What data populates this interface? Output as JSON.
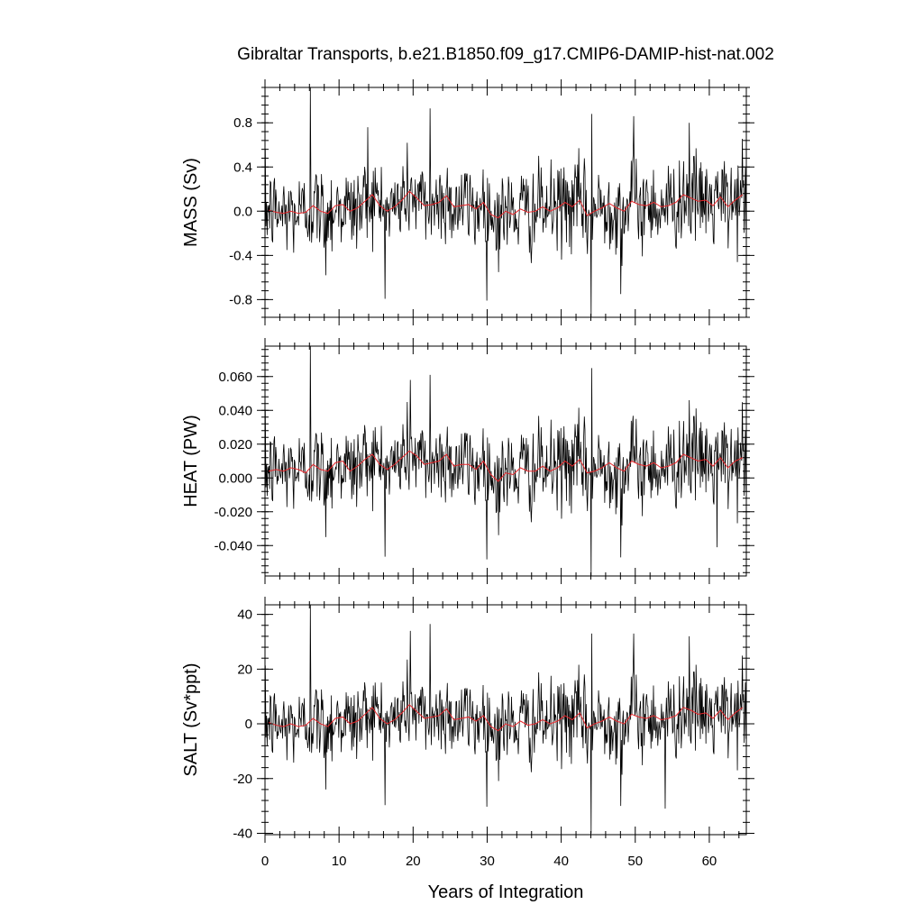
{
  "figure": {
    "title": "Gibraltar Transports, b.e21.B1850.f09_g17.CMIP6-DAMIP-hist-nat.002",
    "xlabel": "Years of Integration",
    "x_ticks": [
      "0",
      "10",
      "20",
      "30",
      "40",
      "50",
      "60"
    ]
  },
  "chart_data": [
    {
      "type": "line",
      "panel": "mass",
      "title": "Gibraltar Transports, b.e21.B1850.f09_g17.CMIP6-DAMIP-hist-nat.002",
      "xlabel": "",
      "ylabel": "MASS (Sv)",
      "xlim": [
        0,
        65
      ],
      "ylim": [
        -0.96,
        1.12
      ],
      "y_ticks": [
        "0.8",
        "0.4",
        "0.0",
        "-0.4",
        "-0.8"
      ],
      "y_tick_values": [
        0.8,
        0.4,
        0.0,
        -0.4,
        -0.8
      ],
      "series": [
        {
          "color": "#000000",
          "style": "monthly",
          "amplitude": 0.2,
          "peaks": [
            [
              6.1,
              1.12
            ],
            [
              22.3,
              0.93
            ],
            [
              44.1,
              0.88
            ],
            [
              13.9,
              0.76
            ],
            [
              57.3,
              0.8
            ],
            [
              49.8,
              0.86
            ],
            [
              44.0,
              -0.96
            ],
            [
              8.2,
              -0.58
            ],
            [
              48.0,
              -0.75
            ]
          ]
        },
        {
          "color": "#e8252a",
          "style": "annual",
          "x": [
            0.5,
            1.5,
            2.5,
            3.5,
            4.5,
            5.5,
            6.5,
            7.5,
            8.5,
            9.5,
            10.5,
            11.5,
            12.5,
            13.5,
            14.5,
            15.5,
            16.5,
            17.5,
            18.5,
            19.5,
            20.5,
            21.5,
            22.5,
            23.5,
            24.5,
            25.5,
            26.5,
            27.5,
            28.5,
            29.5,
            30.5,
            31.5,
            32.5,
            33.5,
            34.5,
            35.5,
            36.5,
            37.5,
            38.5,
            39.5,
            40.5,
            41.5,
            42.5,
            43.5,
            44.5,
            45.5,
            46.5,
            47.5,
            48.5,
            49.5,
            50.5,
            51.5,
            52.5,
            53.5,
            54.5,
            55.5,
            56.5,
            57.5,
            58.5,
            59.5,
            60.5,
            61.5,
            62.5,
            63.5,
            64.5
          ],
          "y": [
            0.01,
            -0.01,
            -0.02,
            0.0,
            -0.02,
            -0.01,
            0.05,
            0.0,
            -0.02,
            0.05,
            0.06,
            0.0,
            0.03,
            0.09,
            0.15,
            0.05,
            0.0,
            0.04,
            0.1,
            0.18,
            0.12,
            0.05,
            0.06,
            0.08,
            0.14,
            0.04,
            0.05,
            0.06,
            0.02,
            0.08,
            -0.03,
            -0.06,
            0.0,
            -0.03,
            0.02,
            -0.01,
            0.0,
            0.04,
            0.0,
            0.03,
            0.08,
            0.04,
            0.1,
            -0.04,
            0.0,
            0.03,
            0.07,
            0.03,
            0.0,
            0.09,
            0.06,
            0.05,
            0.08,
            0.04,
            0.05,
            0.08,
            0.15,
            0.12,
            0.09,
            0.1,
            0.05,
            0.13,
            0.04,
            0.1,
            0.15
          ]
        }
      ]
    },
    {
      "type": "line",
      "panel": "heat",
      "title": "",
      "xlabel": "",
      "ylabel": "HEAT (PW)",
      "xlim": [
        0,
        65
      ],
      "ylim": [
        -0.058,
        0.078
      ],
      "y_ticks": [
        "0.060",
        "0.040",
        "0.020",
        "0.000",
        "-0.020",
        "-0.040"
      ],
      "y_tick_values": [
        0.06,
        0.04,
        0.02,
        0.0,
        -0.02,
        -0.04
      ],
      "series": [
        {
          "color": "#000000",
          "style": "monthly",
          "amplitude": 0.013,
          "peaks": [
            [
              6.1,
              0.078
            ],
            [
              22.3,
              0.061
            ],
            [
              44.1,
              0.065
            ],
            [
              19.6,
              0.058
            ],
            [
              57.3,
              0.046
            ],
            [
              44.0,
              -0.058
            ],
            [
              48.0,
              -0.047
            ],
            [
              8.2,
              -0.035
            ],
            [
              61.0,
              -0.041
            ]
          ]
        },
        {
          "color": "#e8252a",
          "style": "annual",
          "x": [
            0.5,
            1.5,
            2.5,
            3.5,
            4.5,
            5.5,
            6.5,
            7.5,
            8.5,
            9.5,
            10.5,
            11.5,
            12.5,
            13.5,
            14.5,
            15.5,
            16.5,
            17.5,
            18.5,
            19.5,
            20.5,
            21.5,
            22.5,
            23.5,
            24.5,
            25.5,
            26.5,
            27.5,
            28.5,
            29.5,
            30.5,
            31.5,
            32.5,
            33.5,
            34.5,
            35.5,
            36.5,
            37.5,
            38.5,
            39.5,
            40.5,
            41.5,
            42.5,
            43.5,
            44.5,
            45.5,
            46.5,
            47.5,
            48.5,
            49.5,
            50.5,
            51.5,
            52.5,
            53.5,
            54.5,
            55.5,
            56.5,
            57.5,
            58.5,
            59.5,
            60.5,
            61.5,
            62.5,
            63.5,
            64.5
          ],
          "y": [
            0.004,
            0.005,
            0.004,
            0.006,
            0.005,
            0.003,
            0.008,
            0.005,
            0.004,
            0.009,
            0.01,
            0.004,
            0.007,
            0.011,
            0.014,
            0.008,
            0.005,
            0.008,
            0.012,
            0.016,
            0.013,
            0.008,
            0.009,
            0.01,
            0.014,
            0.007,
            0.008,
            0.008,
            0.005,
            0.01,
            0.002,
            -0.002,
            0.003,
            0.002,
            0.006,
            0.004,
            0.004,
            0.007,
            0.004,
            0.006,
            0.01,
            0.007,
            0.011,
            0.003,
            0.004,
            0.006,
            0.009,
            0.006,
            0.004,
            0.01,
            0.008,
            0.007,
            0.009,
            0.006,
            0.007,
            0.009,
            0.014,
            0.012,
            0.01,
            0.011,
            0.007,
            0.012,
            0.006,
            0.01,
            0.012
          ]
        }
      ]
    },
    {
      "type": "line",
      "panel": "salt",
      "title": "",
      "xlabel": "Years of Integration",
      "ylabel": "SALT (Sv*ppt)",
      "xlim": [
        0,
        65
      ],
      "ylim": [
        -40.5,
        43.5
      ],
      "y_ticks": [
        "40",
        "20",
        "0",
        "-20",
        "-40"
      ],
      "y_tick_values": [
        40,
        20,
        0,
        -20,
        -40
      ],
      "series": [
        {
          "color": "#000000",
          "style": "monthly",
          "amplitude": 7.5,
          "peaks": [
            [
              6.1,
              43.5
            ],
            [
              22.3,
              36.5
            ],
            [
              44.1,
              33
            ],
            [
              19.6,
              34
            ],
            [
              57.3,
              32
            ],
            [
              49.8,
              33
            ],
            [
              44.0,
              -40
            ],
            [
              8.2,
              -24
            ],
            [
              48.0,
              -30
            ],
            [
              54.0,
              -31
            ]
          ]
        },
        {
          "color": "#e8252a",
          "style": "annual",
          "x": [
            0.5,
            1.5,
            2.5,
            3.5,
            4.5,
            5.5,
            6.5,
            7.5,
            8.5,
            9.5,
            10.5,
            11.5,
            12.5,
            13.5,
            14.5,
            15.5,
            16.5,
            17.5,
            18.5,
            19.5,
            20.5,
            21.5,
            22.5,
            23.5,
            24.5,
            25.5,
            26.5,
            27.5,
            28.5,
            29.5,
            30.5,
            31.5,
            32.5,
            33.5,
            34.5,
            35.5,
            36.5,
            37.5,
            38.5,
            39.5,
            40.5,
            41.5,
            42.5,
            43.5,
            44.5,
            45.5,
            46.5,
            47.5,
            48.5,
            49.5,
            50.5,
            51.5,
            52.5,
            53.5,
            54.5,
            55.5,
            56.5,
            57.5,
            58.5,
            59.5,
            60.5,
            61.5,
            62.5,
            63.5,
            64.5
          ],
          "y": [
            0.5,
            -0.5,
            -1.0,
            0.0,
            -1.0,
            -0.5,
            2.0,
            0.0,
            -1.0,
            2.0,
            2.5,
            0.0,
            1.0,
            3.5,
            6.0,
            2.0,
            0.0,
            1.5,
            4.0,
            7.0,
            4.5,
            2.0,
            2.5,
            3.0,
            5.5,
            1.5,
            2.0,
            2.5,
            1.0,
            3.0,
            -1.0,
            -2.5,
            0.0,
            -1.0,
            1.0,
            -0.5,
            0.0,
            1.5,
            0.0,
            1.0,
            3.0,
            1.5,
            4.0,
            -1.5,
            0.0,
            1.0,
            2.5,
            1.0,
            0.0,
            3.5,
            2.5,
            2.0,
            3.0,
            1.5,
            2.0,
            3.0,
            6.0,
            5.0,
            3.5,
            4.0,
            2.0,
            5.0,
            1.5,
            4.0,
            6.0
          ]
        }
      ]
    }
  ]
}
